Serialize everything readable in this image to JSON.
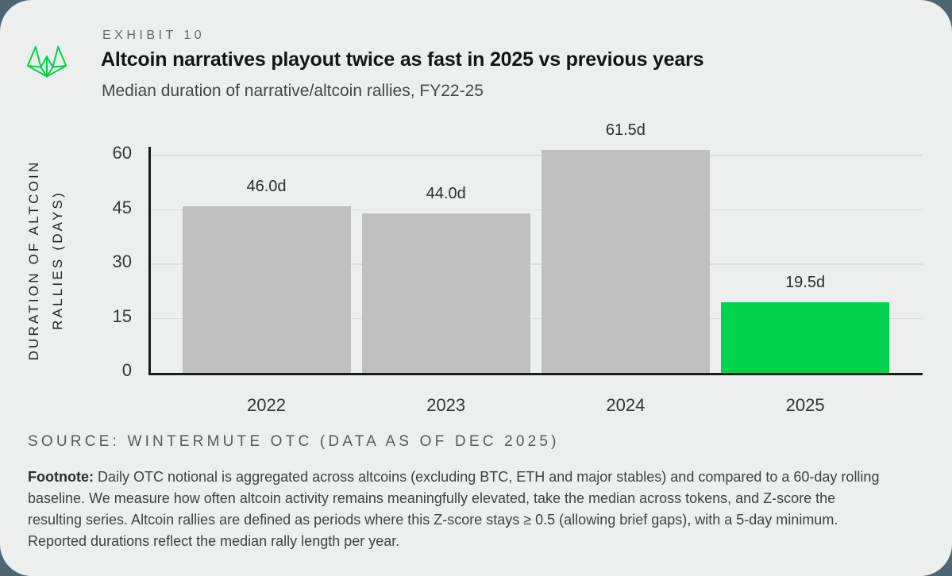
{
  "page": {
    "background_color": "#4c6570",
    "card_color": "#edefee"
  },
  "header": {
    "exhibit_label": "EXHIBIT 10",
    "title": "Altcoin narratives playout twice as fast in 2025 vs previous years",
    "subtitle": "Median duration of narrative/altcoin rallies, FY22-25",
    "logo_color": "#00d24e"
  },
  "chart_data": {
    "type": "bar",
    "categories": [
      "2022",
      "2023",
      "2024",
      "2025"
    ],
    "values": [
      46.0,
      44.0,
      61.5,
      19.5
    ],
    "value_labels": [
      "46.0d",
      "44.0d",
      "61.5d",
      "19.5d"
    ],
    "bar_colors": [
      "#bebfbe",
      "#bebfbe",
      "#bebfbe",
      "#00d24e"
    ],
    "title": "Altcoin narratives playout twice as fast in 2025 vs previous years",
    "subtitle": "Median duration of narrative/altcoin rallies, FY22-25",
    "xlabel": "",
    "ylabel_line1": "DURATION OF ALTCOIN",
    "ylabel_line2": "RALLIES (DAYS)",
    "yticks": [
      0,
      15,
      30,
      45,
      60
    ],
    "ylim": [
      0,
      62.5
    ],
    "grid": "horizontal",
    "legend": "none",
    "highlight_color": "#00d24e",
    "default_bar_color": "#bebfbe",
    "axis_color": "#191c1b",
    "gridline_color": "#dcdedd"
  },
  "source": {
    "text": "SOURCE: WINTERMUTE OTC (DATA AS OF DEC 2025)"
  },
  "footnote": {
    "label": "Footnote:",
    "line1": "Daily OTC notional is aggregated across altcoins (excluding BTC, ETH and major stables) and compared to a 60-day rolling",
    "line2": "baseline. We measure how often altcoin activity remains meaningfully elevated, take the median across tokens, and Z-score the",
    "line3": "resulting series. Altcoin rallies are defined as periods where this Z-score stays ≥ 0.5 (allowing brief gaps), with a 5-day minimum.",
    "line4": "Reported durations reflect the median rally length per year."
  }
}
